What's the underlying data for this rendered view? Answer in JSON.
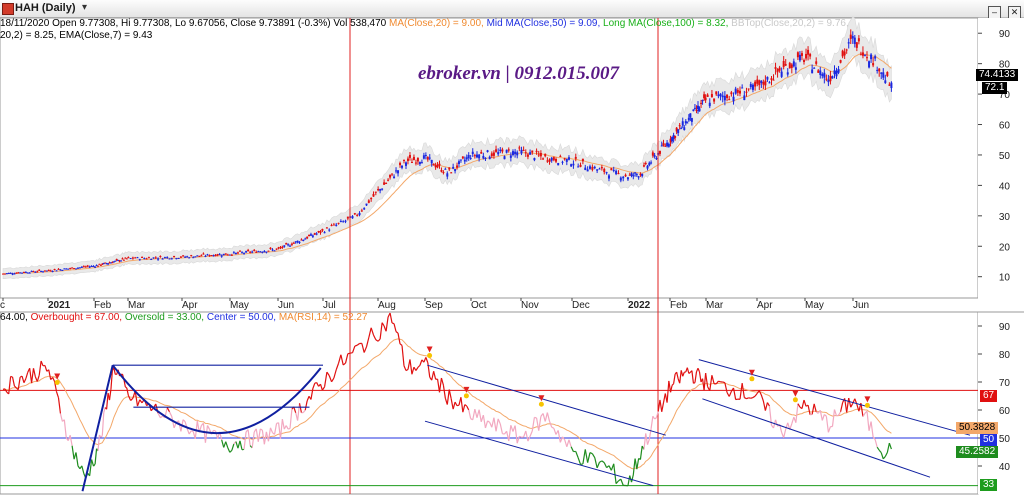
{
  "window": {
    "title": "HAH (Daily)"
  },
  "header": {
    "price_line": "18/11/2020 Open 9.77308, Hi 9.77308, Lo 9.67056, Close 9.73891 (-0.3%) Vol 538,470",
    "ma20": "MA(Close,20) = 9.00,",
    "mid_ma": "Mid MA(Close,50) = 9.09,",
    "long_ma": "Long MA(Close,100) = 8.32,",
    "bbtop": "BBTop(Close,20,2) = 9.76,",
    "bbbot": "20,2) = 8.25,",
    "ema": "EMA(Close,7) = 9.43"
  },
  "rsi_header": {
    "rsi": "64.00,",
    "overbought": "Overbought = 67.00,",
    "oversold": "Oversold = 33.00,",
    "center": "Center = 50.00,",
    "ma_rsi": "MA(RSI,14) = 52.27"
  },
  "watermark": "ebroker.vn | 0912.015.007",
  "tags": {
    "price_last": "74.4133",
    "price_second": "72.1",
    "ob": "67",
    "ma_rsi": "50.3828",
    "center": "50",
    "rsi": "45.2582",
    "os": "33"
  },
  "colors": {
    "up": "#1a28e0",
    "down": "#e01010",
    "rsi_up": "#e01010",
    "rsi_down": "#1e8c1e",
    "rsi_mid": "#f2a8c0",
    "ma": "#f3a86a",
    "band": "#e9e9e9",
    "ob": "#e01010",
    "os": "#1e9c1e",
    "center": "#2030e0",
    "pattern": "#1020a0"
  },
  "chart_data": [
    {
      "type": "candlestick",
      "title": "HAH (Daily)",
      "x_ticks": [
        "c",
        "2021",
        "Feb",
        "Mar",
        "Apr",
        "May",
        "Jun",
        "Jul",
        "Aug",
        "Sep",
        "Oct",
        "Nov",
        "Dec",
        "2022",
        "Feb",
        "Mar",
        "Apr",
        "May",
        "Jun"
      ],
      "y_ticks": [
        10,
        20,
        30,
        40,
        50,
        60,
        70,
        80,
        90
      ],
      "ylim": [
        3,
        95
      ],
      "close_keypoints": [
        {
          "m": 0,
          "v": 11
        },
        {
          "m": 1,
          "v": 12
        },
        {
          "m": 2,
          "v": 13.5
        },
        {
          "m": 3,
          "v": 16
        },
        {
          "m": 4,
          "v": 16.5
        },
        {
          "m": 5,
          "v": 17.5
        },
        {
          "m": 6,
          "v": 19
        },
        {
          "m": 7,
          "v": 25
        },
        {
          "m": 7.6,
          "v": 30
        },
        {
          "m": 8,
          "v": 38
        },
        {
          "m": 8.6,
          "v": 48
        },
        {
          "m": 9,
          "v": 49
        },
        {
          "m": 9.5,
          "v": 44
        },
        {
          "m": 10,
          "v": 50
        },
        {
          "m": 11,
          "v": 51
        },
        {
          "m": 11.5,
          "v": 49
        },
        {
          "m": 12,
          "v": 48
        },
        {
          "m": 12.5,
          "v": 45
        },
        {
          "m": 13,
          "v": 43
        },
        {
          "m": 13.3,
          "v": 44
        },
        {
          "m": 14,
          "v": 55
        },
        {
          "m": 15,
          "v": 68
        },
        {
          "m": 16,
          "v": 72
        },
        {
          "m": 16.5,
          "v": 78
        },
        {
          "m": 17,
          "v": 82
        },
        {
          "m": 17.5,
          "v": 75
        },
        {
          "m": 18,
          "v": 88
        },
        {
          "m": 18.5,
          "v": 80
        },
        {
          "m": 18.8,
          "v": 72
        }
      ],
      "last_price": 74.4133
    },
    {
      "type": "line",
      "title": "RSI",
      "y_ticks": [
        40,
        50,
        60,
        70,
        80,
        90
      ],
      "ylim": [
        30,
        95
      ],
      "overbought": 67,
      "oversold": 33,
      "center": 50,
      "rsi_keypoints": [
        {
          "m": 0,
          "v": 68
        },
        {
          "m": 0.5,
          "v": 72
        },
        {
          "m": 1,
          "v": 75
        },
        {
          "m": 1.5,
          "v": 48
        },
        {
          "m": 1.8,
          "v": 35
        },
        {
          "m": 2.2,
          "v": 50
        },
        {
          "m": 2.6,
          "v": 76
        },
        {
          "m": 3,
          "v": 65
        },
        {
          "m": 4,
          "v": 55
        },
        {
          "m": 5,
          "v": 48
        },
        {
          "m": 6,
          "v": 52
        },
        {
          "m": 6.8,
          "v": 66
        },
        {
          "m": 7.3,
          "v": 76
        },
        {
          "m": 8,
          "v": 88
        },
        {
          "m": 8.3,
          "v": 93
        },
        {
          "m": 8.6,
          "v": 75
        },
        {
          "m": 9,
          "v": 76
        },
        {
          "m": 9.5,
          "v": 65
        },
        {
          "m": 10,
          "v": 58
        },
        {
          "m": 11,
          "v": 50
        },
        {
          "m": 11.5,
          "v": 58
        },
        {
          "m": 12,
          "v": 45
        },
        {
          "m": 12.6,
          "v": 40
        },
        {
          "m": 13,
          "v": 33
        },
        {
          "m": 13.3,
          "v": 45
        },
        {
          "m": 13.6,
          "v": 55
        },
        {
          "m": 14,
          "v": 68
        },
        {
          "m": 14.5,
          "v": 74
        },
        {
          "m": 15,
          "v": 70
        },
        {
          "m": 16,
          "v": 65
        },
        {
          "m": 16.5,
          "v": 52
        },
        {
          "m": 17,
          "v": 62
        },
        {
          "m": 17.5,
          "v": 55
        },
        {
          "m": 18,
          "v": 64
        },
        {
          "m": 18.3,
          "v": 56
        },
        {
          "m": 18.6,
          "v": 46
        },
        {
          "m": 18.8,
          "v": 45.26
        }
      ],
      "last_rsi": 45.2582,
      "last_ma_rsi": 50.3828
    }
  ]
}
